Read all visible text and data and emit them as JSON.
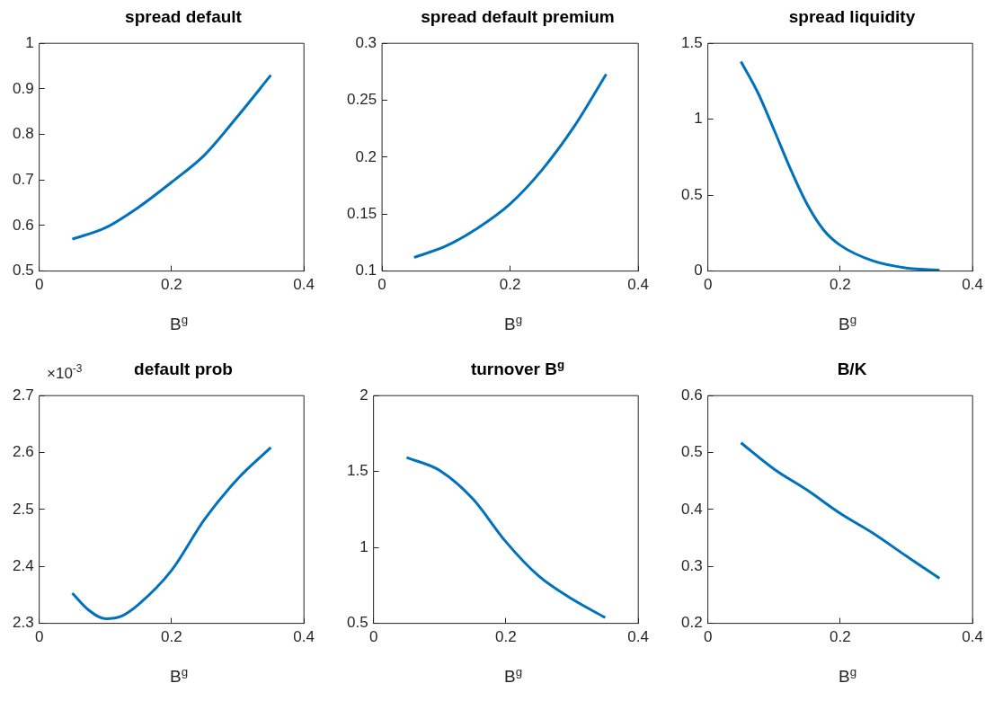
{
  "chart_data": [
    {
      "type": "line",
      "title": "spread default",
      "xlabel": "B$^{g}$",
      "x": [
        0.05,
        0.1,
        0.15,
        0.2,
        0.25,
        0.3,
        0.35
      ],
      "series": [
        {
          "color": "#0072bd",
          "values": [
            0.57,
            0.595,
            0.64,
            0.695,
            0.755,
            0.84,
            0.93
          ]
        }
      ],
      "xlim": [
        0,
        0.4
      ],
      "xticks": [
        0,
        0.2,
        0.4
      ],
      "ylim": [
        0.5,
        1
      ],
      "yticks": [
        0.5,
        0.6,
        0.7,
        0.8,
        0.9,
        1
      ]
    },
    {
      "type": "line",
      "title": "spread default premium",
      "xlabel": "B$^{g}$",
      "x": [
        0.05,
        0.1,
        0.15,
        0.2,
        0.25,
        0.3,
        0.35
      ],
      "series": [
        {
          "color": "#0072bd",
          "values": [
            0.112,
            0.122,
            0.138,
            0.159,
            0.189,
            0.227,
            0.273
          ]
        }
      ],
      "xlim": [
        0,
        0.4
      ],
      "xticks": [
        0,
        0.2,
        0.4
      ],
      "ylim": [
        0.1,
        0.3
      ],
      "yticks": [
        0.1,
        0.15,
        0.2,
        0.25,
        0.3
      ]
    },
    {
      "type": "line",
      "title": "spread liquidity",
      "xlabel": "B$^{g}$",
      "x": [
        0.05,
        0.075,
        0.1,
        0.125,
        0.15,
        0.175,
        0.2,
        0.25,
        0.3,
        0.35
      ],
      "series": [
        {
          "color": "#0072bd",
          "values": [
            1.38,
            1.18,
            0.93,
            0.67,
            0.44,
            0.27,
            0.17,
            0.066,
            0.02,
            0.005
          ]
        }
      ],
      "xlim": [
        0,
        0.4
      ],
      "xticks": [
        0,
        0.2,
        0.4
      ],
      "ylim": [
        0,
        1.5
      ],
      "yticks": [
        0,
        0.5,
        1,
        1.5
      ]
    },
    {
      "type": "line",
      "title": "default prob",
      "annotations": [
        "×10$^{-3}$"
      ],
      "xlabel": "B$^{g}$",
      "x": [
        0.05,
        0.075,
        0.1,
        0.125,
        0.15,
        0.2,
        0.25,
        0.3,
        0.35
      ],
      "series": [
        {
          "color": "#0072bd",
          "values": [
            2.353,
            2.323,
            2.308,
            2.313,
            2.333,
            2.393,
            2.483,
            2.554,
            2.609
          ]
        }
      ],
      "xlim": [
        0,
        0.4
      ],
      "xticks": [
        0,
        0.2,
        0.4
      ],
      "ylim": [
        2.3,
        2.7
      ],
      "yticks": [
        2.3,
        2.4,
        2.5,
        2.6,
        2.7
      ]
    },
    {
      "type": "line",
      "title": "turnover B$^{g}$",
      "xlabel": "B$^{g}$",
      "x": [
        0.05,
        0.1,
        0.15,
        0.2,
        0.25,
        0.3,
        0.35
      ],
      "series": [
        {
          "color": "#0072bd",
          "values": [
            1.592,
            1.507,
            1.32,
            1.037,
            0.81,
            0.66,
            0.538
          ]
        }
      ],
      "xlim": [
        0,
        0.4
      ],
      "xticks": [
        0,
        0.2,
        0.4
      ],
      "ylim": [
        0.5,
        2
      ],
      "yticks": [
        0.5,
        1,
        1.5,
        2
      ]
    },
    {
      "type": "line",
      "title": "B/K",
      "xlabel": "B$^{g}$",
      "x": [
        0.05,
        0.1,
        0.15,
        0.2,
        0.25,
        0.3,
        0.35
      ],
      "series": [
        {
          "color": "#0072bd",
          "values": [
            0.517,
            0.471,
            0.434,
            0.393,
            0.358,
            0.318,
            0.279
          ]
        }
      ],
      "xlim": [
        0,
        0.4
      ],
      "xticks": [
        0,
        0.2,
        0.4
      ],
      "ylim": [
        0.2,
        0.6
      ],
      "yticks": [
        0.2,
        0.3,
        0.4,
        0.5,
        0.6
      ]
    }
  ]
}
